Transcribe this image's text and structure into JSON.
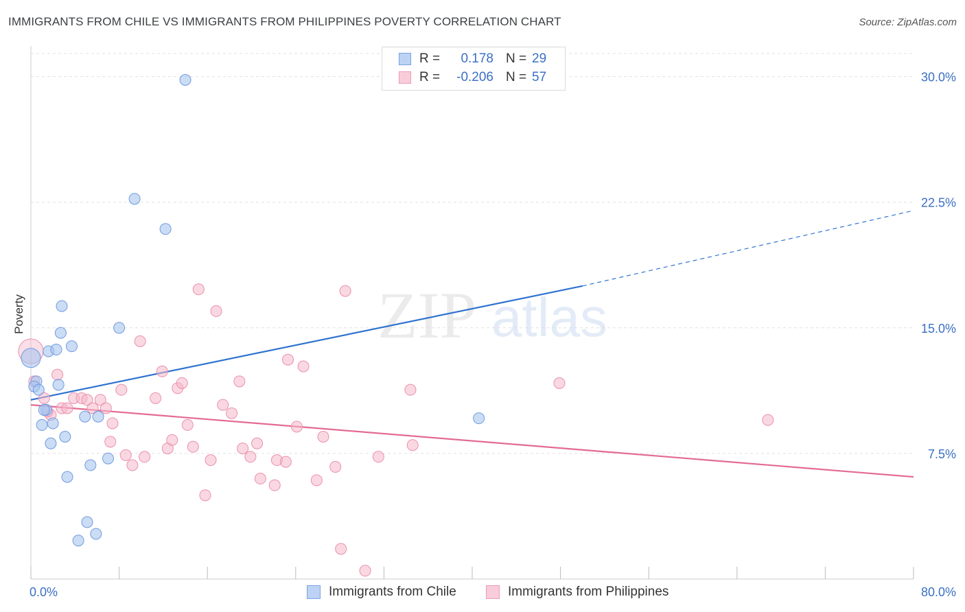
{
  "header": {
    "title": "IMMIGRANTS FROM CHILE VS IMMIGRANTS FROM PHILIPPINES POVERTY CORRELATION CHART",
    "source": "Source: ZipAtlas.com"
  },
  "watermark": {
    "zip": "ZIP",
    "atlas": "atlas"
  },
  "legend": {
    "rows": [
      {
        "r_label": "R =",
        "r_value": "0.178",
        "n_label": "N =",
        "n_value": "29",
        "color": "#a8c4ef"
      },
      {
        "r_label": "R =",
        "r_value": "-0.206",
        "n_label": "N =",
        "n_value": "57",
        "color": "#f5b8cb"
      }
    ]
  },
  "bottom_legend": {
    "chile": "Immigrants from Chile",
    "philippines": "Immigrants from Philippines"
  },
  "colors": {
    "chile_fill": "#a8c4ef",
    "chile_stroke": "#6f9be0",
    "chile_line": "#2f72d0",
    "phil_fill": "#f5b8cb",
    "phil_stroke": "#ea8fae",
    "phil_line": "#e36a94",
    "axis_label": "#3a6fc4",
    "grid": "#e0e0e0"
  },
  "chart_data": {
    "type": "scatter",
    "title": "IMMIGRANTS FROM CHILE VS IMMIGRANTS FROM PHILIPPINES POVERTY CORRELATION CHART",
    "xlabel": "",
    "ylabel": "Poverty",
    "xlim": [
      0,
      80
    ],
    "ylim": [
      0,
      31.5
    ],
    "x_tick_labels": [
      "0.0%",
      "80.0%"
    ],
    "y_ticks": [
      7.5,
      15.0,
      22.5,
      30.0
    ],
    "y_tick_labels": [
      "7.5%",
      "15.0%",
      "22.5%",
      "30.0%"
    ],
    "series": [
      {
        "name": "Immigrants from Chile",
        "points": [
          [
            14.0,
            29.8
          ],
          [
            9.4,
            22.7
          ],
          [
            12.2,
            20.9
          ],
          [
            2.8,
            16.3
          ],
          [
            8.0,
            15.0
          ],
          [
            2.7,
            14.7
          ],
          [
            1.6,
            13.6
          ],
          [
            3.7,
            13.9
          ],
          [
            2.3,
            13.7
          ],
          [
            0.0,
            13.2
          ],
          [
            0.5,
            11.8
          ],
          [
            0.3,
            11.5
          ],
          [
            0.7,
            11.3
          ],
          [
            2.5,
            11.6
          ],
          [
            1.4,
            10.1
          ],
          [
            1.2,
            10.1
          ],
          [
            4.9,
            9.7
          ],
          [
            6.1,
            9.7
          ],
          [
            1.0,
            9.2
          ],
          [
            2.0,
            9.3
          ],
          [
            3.1,
            8.5
          ],
          [
            1.8,
            8.1
          ],
          [
            7.0,
            7.2
          ],
          [
            5.4,
            6.8
          ],
          [
            3.3,
            6.1
          ],
          [
            5.1,
            3.4
          ],
          [
            5.9,
            2.7
          ],
          [
            4.3,
            2.3
          ],
          [
            40.6,
            9.6
          ]
        ],
        "trend": {
          "x0": 0,
          "y0": 10.7,
          "x1": 50,
          "y1": 17.5,
          "dash_to_x": 80,
          "dash_to_y": 22.0
        }
      },
      {
        "name": "Immigrants from Philippines",
        "points": [
          [
            0.0,
            13.6
          ],
          [
            0.3,
            11.8
          ],
          [
            1.2,
            10.8
          ],
          [
            1.8,
            9.8
          ],
          [
            2.4,
            12.2
          ],
          [
            2.8,
            10.2
          ],
          [
            3.3,
            10.2
          ],
          [
            3.9,
            10.8
          ],
          [
            4.6,
            10.8
          ],
          [
            5.1,
            10.7
          ],
          [
            5.6,
            10.2
          ],
          [
            6.3,
            10.7
          ],
          [
            6.8,
            10.2
          ],
          [
            7.4,
            9.3
          ],
          [
            7.2,
            8.2
          ],
          [
            8.2,
            11.3
          ],
          [
            8.6,
            7.4
          ],
          [
            9.2,
            6.8
          ],
          [
            9.9,
            14.2
          ],
          [
            10.3,
            7.3
          ],
          [
            11.3,
            10.8
          ],
          [
            11.9,
            12.4
          ],
          [
            12.4,
            7.8
          ],
          [
            12.8,
            8.3
          ],
          [
            13.3,
            11.4
          ],
          [
            13.7,
            11.7
          ],
          [
            14.2,
            9.2
          ],
          [
            14.7,
            7.9
          ],
          [
            15.2,
            17.3
          ],
          [
            15.8,
            5.0
          ],
          [
            16.3,
            7.1
          ],
          [
            16.8,
            16.0
          ],
          [
            17.4,
            10.4
          ],
          [
            18.2,
            9.9
          ],
          [
            18.9,
            11.8
          ],
          [
            19.2,
            7.8
          ],
          [
            19.9,
            7.3
          ],
          [
            20.5,
            8.1
          ],
          [
            20.8,
            6.0
          ],
          [
            22.1,
            5.6
          ],
          [
            22.3,
            7.1
          ],
          [
            23.1,
            7.0
          ],
          [
            23.3,
            13.1
          ],
          [
            24.1,
            9.1
          ],
          [
            24.7,
            12.7
          ],
          [
            25.9,
            5.9
          ],
          [
            26.5,
            8.5
          ],
          [
            27.6,
            6.7
          ],
          [
            28.5,
            17.2
          ],
          [
            28.1,
            1.8
          ],
          [
            30.3,
            0.5
          ],
          [
            31.5,
            7.3
          ],
          [
            34.4,
            11.3
          ],
          [
            34.6,
            8.0
          ],
          [
            47.9,
            11.7
          ],
          [
            66.8,
            9.5
          ],
          [
            1.5,
            10.0
          ]
        ],
        "trend": {
          "x0": 0,
          "y0": 10.4,
          "x1": 80,
          "y1": 6.1
        }
      }
    ]
  }
}
